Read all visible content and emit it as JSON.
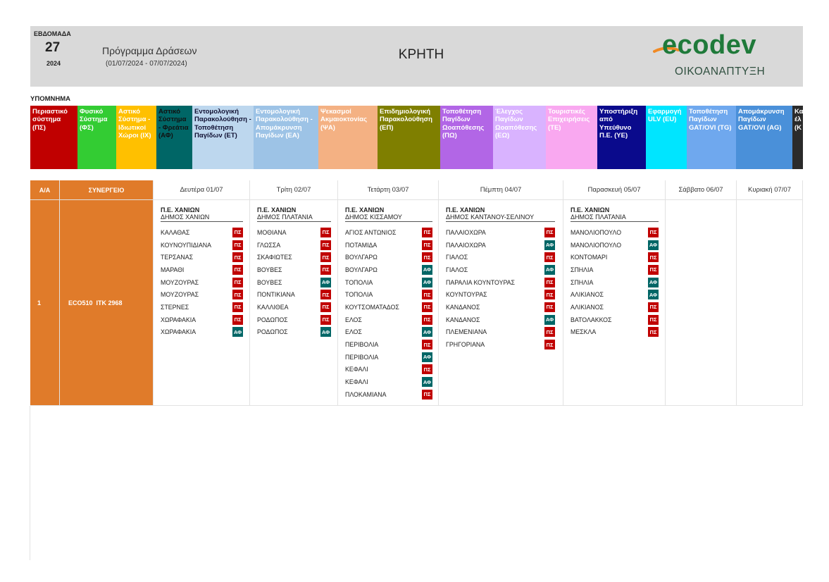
{
  "header": {
    "week_label": "ΕΒΔΟΜΑΔΑ",
    "week": "27",
    "year": "2024",
    "title": "Πρόγραμμα Δράσεων",
    "period": "(01/07/2024 - 07/07/2024)",
    "region": "ΚΡΗΤΗ",
    "logo": "ecodev",
    "logo_subtitle": "ΟΙΚΟΑΝΑΠΤΥΞΗ"
  },
  "legend": {
    "title": "ΥΠΟΜΝΗΜΑ",
    "items": [
      {
        "label": "Περιαστικό σύστημα (ΠΣ)",
        "color": "#c00000",
        "text_color": "#ffffff"
      },
      {
        "label": "Φυσικό Σύστημα (ΦΣ)",
        "color": "#33cc33",
        "text_color": "#ffffff"
      },
      {
        "label": "Αστικό Σύστημα - Ιδιωτικοί Χώροι (ΙΧ)",
        "color": "#ffc000",
        "text_color": "#ffffff"
      },
      {
        "label": "Αστικό Σύστημα - Φρεάτια (ΑΦ)",
        "color": "#006666",
        "text_color": "#111111"
      },
      {
        "label": "Εντομολογική Παρακολούθηση - Τοποθέτηση Παγίδων (ΕΤ)",
        "color": "#bdd7ee",
        "text_color": "#111133"
      },
      {
        "label": "Εντομολογική Παρακολούθηση - Απομάκρυνση Παγίδων (ΕΑ)",
        "color": "#9dc3e6",
        "text_color": "#ffffff"
      },
      {
        "label": "Ψεκασμοί Ακμαιοκτονίας (ΨΑ)",
        "color": "#f4b183",
        "text_color": "#ffffff"
      },
      {
        "label": "Επιδημιολογική Παρακολούθηση (ΕΠ)",
        "color": "#7f7f00",
        "text_color": "#ffffff"
      },
      {
        "label": "Τοποθέτηση Παγίδων Ωοαπόθεσης (ΠΩ)",
        "color": "#b266e6",
        "text_color": "#ffffff"
      },
      {
        "label": "Έλεγχος Παγίδων Ωοαπόθεσης (ΕΩ)",
        "color": "#d9b3ff",
        "text_color": "#ffffff"
      },
      {
        "label": "Τουριστικές Επιχειρήσεις (ΤΕ)",
        "color": "#f9a8f0",
        "text_color": "#ffffff"
      },
      {
        "label": "Υποστήριξη από Υπεύθυνο Π.Ε. (ΥΕ)",
        "color": "#0a0a8c",
        "text_color": "#ffffff"
      },
      {
        "label": "Εφαρμογή ULV (EU)",
        "color": "#00e5ff",
        "text_color": "#ffffff"
      },
      {
        "label": "Τοποθέτηση Παγίδων GAT/OVI (TG)",
        "color": "#6fa8ee",
        "text_color": "#ffffff"
      },
      {
        "label": "Απομάκρυνση Παγίδων GAT/OVI (AG)",
        "color": "#4a90d9",
        "text_color": "#ffffff"
      },
      {
        "label": "Κα\nέλ\n(Κ",
        "color": "#2b2b2b",
        "text_color": "#ffffff"
      }
    ]
  },
  "table": {
    "columns": [
      "Α/Α",
      "ΣΥΝΕΡΓΕΙΟ",
      "Δευτέρα 01/07",
      "Τρίτη 02/07",
      "Τετάρτη 03/07",
      "Πέμπτη 04/07",
      "Παρασκευή 05/07",
      "Σάββατο 06/07",
      "Κυριακή 07/07"
    ],
    "rows": [
      {
        "index": "1",
        "team": "ECO510  ITK 2968",
        "days": [
          {
            "region": "Π.Ε. ΧΑΝΙΩΝ",
            "municipality": "ΔΗΜΟΣ ΧΑΝΙΩΝ",
            "entries": [
              {
                "place": "ΚΑΛΑΘΑΣ",
                "code": "ΠΣ"
              },
              {
                "place": "ΚΟΥΝΟΥΠΙΔΙΑΝΑ",
                "code": "ΠΣ"
              },
              {
                "place": "ΤΕΡΣΑΝΑΣ",
                "code": "ΠΣ"
              },
              {
                "place": "ΜΑΡΑΘΙ",
                "code": "ΠΣ"
              },
              {
                "place": "ΜΟΥΖΟΥΡΑΣ",
                "code": "ΠΣ"
              },
              {
                "place": "ΜΟΥΖΟΥΡΑΣ",
                "code": "ΠΣ"
              },
              {
                "place": "ΣΤΕΡΝΕΣ",
                "code": "ΠΣ"
              },
              {
                "place": "ΧΩΡΑΦΑΚΙΑ",
                "code": "ΠΣ"
              },
              {
                "place": "ΧΩΡΑΦΑΚΙΑ",
                "code": "ΑΦ"
              }
            ]
          },
          {
            "region": "Π.Ε. ΧΑΝΙΩΝ",
            "municipality": "ΔΗΜΟΣ ΠΛΑΤΑΝΙΑ",
            "entries": [
              {
                "place": "ΜΟΘΙΑΝΑ",
                "code": "ΠΣ"
              },
              {
                "place": "ΓΛΩΣΣΑ",
                "code": "ΠΣ"
              },
              {
                "place": "ΣΚΑΦΙΩΤΕΣ",
                "code": "ΠΣ"
              },
              {
                "place": "ΒΟΥΒΕΣ",
                "code": "ΠΣ"
              },
              {
                "place": "ΒΟΥΒΕΣ",
                "code": "ΑΦ"
              },
              {
                "place": "ΠΟΝΤΙΚΙΑΝΑ",
                "code": "ΠΣ"
              },
              {
                "place": "ΚΑΛΛΙΘΕΑ",
                "code": "ΠΣ"
              },
              {
                "place": "ΡΟΔΩΠΟΣ",
                "code": "ΠΣ"
              },
              {
                "place": "ΡΟΔΩΠΟΣ",
                "code": "ΑΦ"
              }
            ]
          },
          {
            "region": "Π.Ε. ΧΑΝΙΩΝ",
            "municipality": "ΔΗΜΟΣ ΚΙΣΣΑΜΟΥ",
            "entries": [
              {
                "place": "ΑΓΙΟΣ ΑΝΤΩΝΙΟΣ",
                "code": "ΠΣ"
              },
              {
                "place": "ΠΟΤΑΜΙΔΑ",
                "code": "ΠΣ"
              },
              {
                "place": "ΒΟΥΛΓΑΡΩ",
                "code": "ΠΣ"
              },
              {
                "place": "ΒΟΥΛΓΑΡΩ",
                "code": "ΑΦ"
              },
              {
                "place": "ΤΟΠΟΛΙΑ",
                "code": "ΑΦ"
              },
              {
                "place": "ΤΟΠΟΛΙΑ",
                "code": "ΠΣ"
              },
              {
                "place": "ΚΟΥΤΣΟΜΑΤΑΔΟΣ",
                "code": "ΠΣ"
              },
              {
                "place": "ΕΛΟΣ",
                "code": "ΠΣ"
              },
              {
                "place": "ΕΛΟΣ",
                "code": "ΑΦ"
              },
              {
                "place": "ΠΕΡΙΒΟΛΙΑ",
                "code": "ΠΣ"
              },
              {
                "place": "ΠΕΡΙΒΟΛΙΑ",
                "code": "ΑΦ"
              },
              {
                "place": "ΚΕΦΑΛΙ",
                "code": "ΠΣ"
              },
              {
                "place": "ΚΕΦΑΛΙ",
                "code": "ΑΦ"
              },
              {
                "place": "ΠΛΟΚΑΜΙΑΝΑ",
                "code": "ΠΣ"
              }
            ]
          },
          {
            "region": "Π.Ε. ΧΑΝΙΩΝ",
            "municipality": "ΔΗΜΟΣ ΚΑΝΤΑΝΟΥ-ΣΕΛΙΝΟΥ",
            "entries": [
              {
                "place": "ΠΑΛΑΙΟΧΩΡΑ",
                "code": "ΠΣ"
              },
              {
                "place": "ΠΑΛΑΙΟΧΩΡΑ",
                "code": "ΑΦ"
              },
              {
                "place": "ΓΙΑΛΟΣ",
                "code": "ΠΣ"
              },
              {
                "place": "ΓΙΑΛΟΣ",
                "code": "ΑΦ"
              },
              {
                "place": "ΠΑΡΑΛΙΑ ΚΟΥΝΤΟΥΡΑΣ",
                "code": "ΠΣ"
              },
              {
                "place": "ΚΟΥΝΤΟΥΡΑΣ",
                "code": "ΠΣ"
              },
              {
                "place": "ΚΑΝΔΑΝΟΣ",
                "code": "ΠΣ"
              },
              {
                "place": "ΚΑΝΔΑΝΟΣ",
                "code": "ΑΦ"
              },
              {
                "place": "ΠΛΕΜΕΝΙΑΝΑ",
                "code": "ΠΣ"
              },
              {
                "place": "ΓΡΗΓΟΡΙΑΝΑ",
                "code": "ΠΣ"
              }
            ]
          },
          {
            "region": "Π.Ε. ΧΑΝΙΩΝ",
            "municipality": "ΔΗΜΟΣ ΠΛΑΤΑΝΙΑ",
            "entries": [
              {
                "place": "ΜΑΝΟΛΙΟΠΟΥΛΟ",
                "code": "ΠΣ"
              },
              {
                "place": "ΜΑΝΟΛΙΟΠΟΥΛΟ",
                "code": "ΑΦ"
              },
              {
                "place": "ΚΟΝΤΟΜΑΡΙ",
                "code": "ΠΣ"
              },
              {
                "place": "ΣΠΗΛΙΑ",
                "code": "ΠΣ"
              },
              {
                "place": "ΣΠΗΛΙΑ",
                "code": "ΑΦ"
              },
              {
                "place": "ΑΛΙΚΙΑΝΟΣ",
                "code": "ΑΦ"
              },
              {
                "place": "ΑΛΙΚΙΑΝΟΣ",
                "code": "ΠΣ"
              },
              {
                "place": "ΒΑΤΟΛΑΚΚΟΣ",
                "code": "ΠΣ"
              },
              {
                "place": "ΜΕΣΚΛΑ",
                "code": "ΠΣ"
              }
            ]
          }
        ]
      }
    ]
  }
}
